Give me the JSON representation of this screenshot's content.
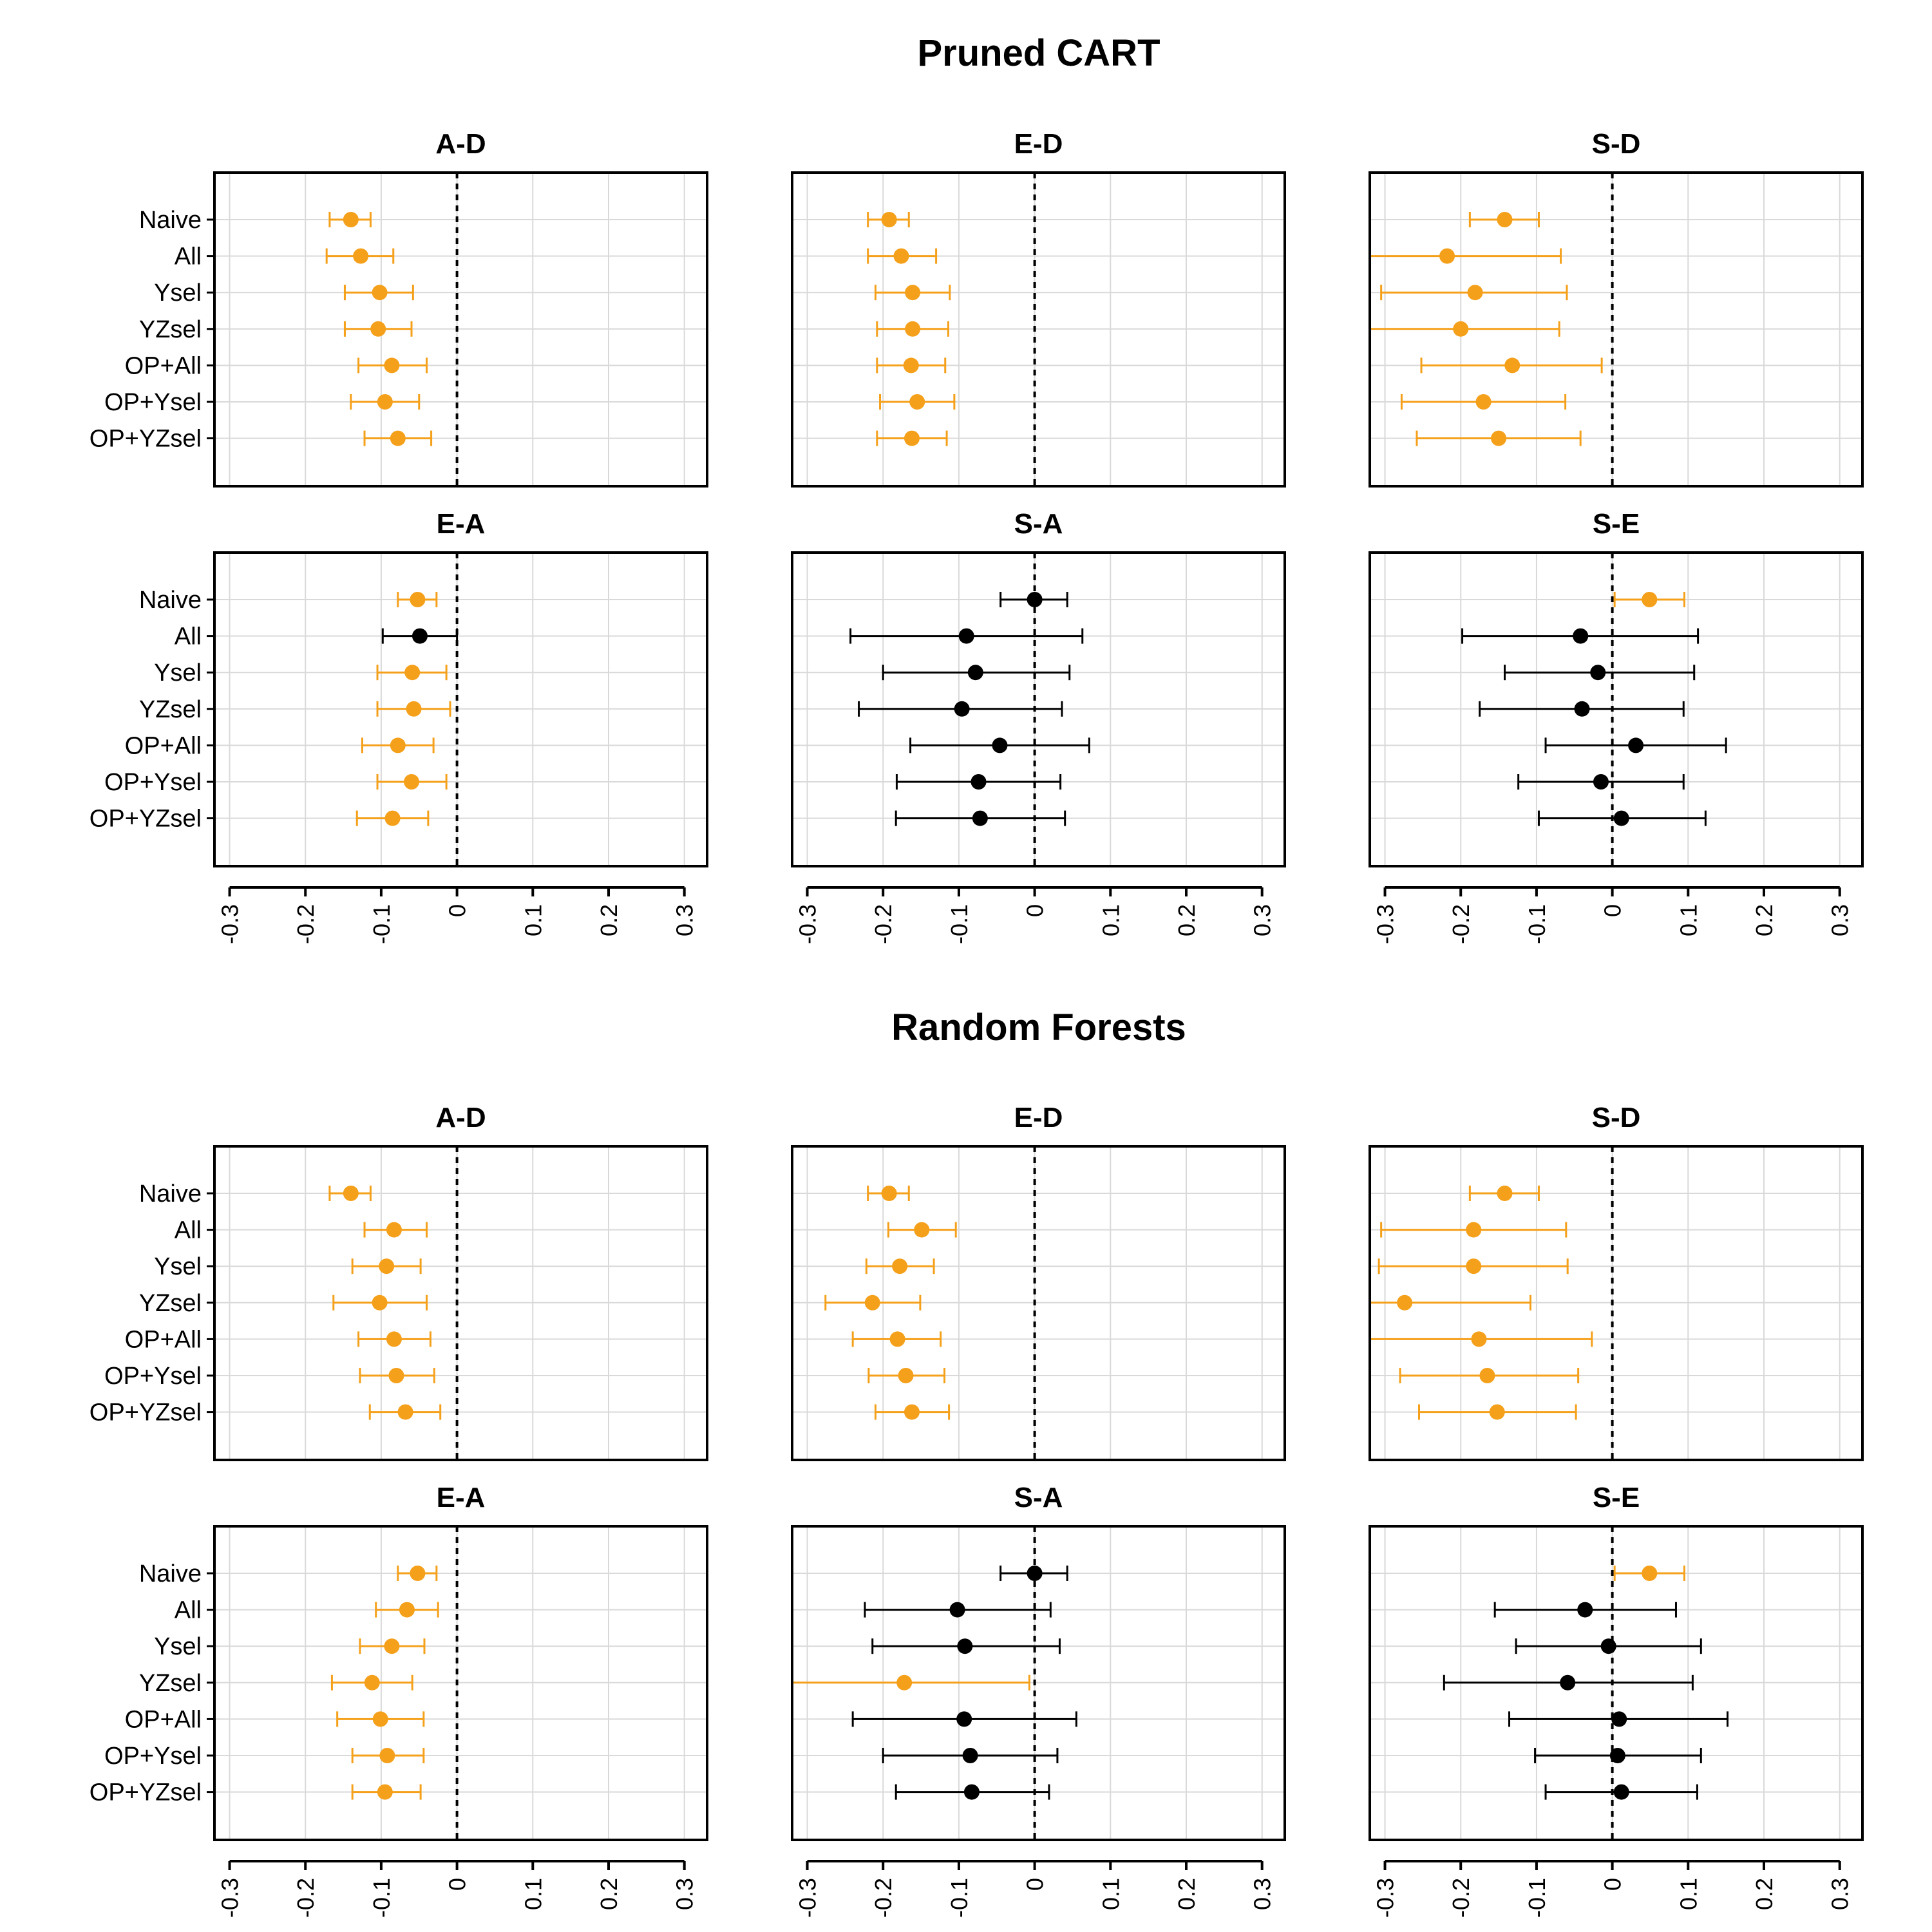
{
  "chart_data": {
    "type": "scatter",
    "subtype": "forest-plot",
    "colors": {
      "significant": "#F5A01A",
      "not_significant": "#000000"
    },
    "methods": [
      "Naive",
      "All",
      "Ysel",
      "YZsel",
      "OP+All",
      "OP+Ysel",
      "OP+YZsel"
    ],
    "xlim": [
      -0.32,
      0.33
    ],
    "x_ticks": [
      -0.3,
      -0.2,
      -0.1,
      0,
      0.1,
      0.2,
      0.3
    ],
    "x_tick_labels": [
      "-0.3",
      "-0.2",
      "-0.1",
      "0",
      "0.1",
      "0.2",
      "0.3"
    ],
    "reference_line": 0,
    "sections": [
      {
        "title": "Pruned CART",
        "panels": [
          {
            "title": "A-D",
            "est": [
              -0.14,
              -0.127,
              -0.102,
              -0.104,
              -0.086,
              -0.095,
              -0.078
            ],
            "lo": [
              -0.168,
              -0.172,
              -0.148,
              -0.148,
              -0.13,
              -0.14,
              -0.122
            ],
            "hi": [
              -0.114,
              -0.084,
              -0.058,
              -0.06,
              -0.04,
              -0.05,
              -0.034
            ],
            "sig": [
              true,
              true,
              true,
              true,
              true,
              true,
              true
            ]
          },
          {
            "title": "E-D",
            "est": [
              -0.192,
              -0.176,
              -0.161,
              -0.161,
              -0.163,
              -0.155,
              -0.162
            ],
            "lo": [
              -0.22,
              -0.22,
              -0.21,
              -0.208,
              -0.208,
              -0.204,
              -0.208
            ],
            "hi": [
              -0.166,
              -0.13,
              -0.112,
              -0.114,
              -0.118,
              -0.106,
              -0.116
            ],
            "sig": [
              true,
              true,
              true,
              true,
              true,
              true,
              true
            ]
          },
          {
            "title": "S-D",
            "est": [
              -0.142,
              -0.218,
              -0.181,
              -0.2,
              -0.132,
              -0.17,
              -0.15
            ],
            "lo": [
              -0.188,
              -0.32,
              -0.305,
              -0.32,
              -0.252,
              -0.278,
              -0.258
            ],
            "hi": [
              -0.097,
              -0.068,
              -0.06,
              -0.07,
              -0.014,
              -0.062,
              -0.042
            ],
            "sig": [
              true,
              true,
              true,
              true,
              true,
              true,
              true
            ]
          },
          {
            "title": "E-A",
            "est": [
              -0.052,
              -0.049,
              -0.059,
              -0.057,
              -0.078,
              -0.06,
              -0.085
            ],
            "lo": [
              -0.078,
              -0.098,
              -0.105,
              -0.105,
              -0.125,
              -0.105,
              -0.132
            ],
            "hi": [
              -0.027,
              0,
              -0.014,
              -0.009,
              -0.031,
              -0.014,
              -0.038
            ],
            "sig": [
              true,
              false,
              true,
              true,
              true,
              true,
              true
            ]
          },
          {
            "title": "S-A",
            "est": [
              0.0,
              -0.09,
              -0.078,
              -0.096,
              -0.046,
              -0.074,
              -0.072
            ],
            "lo": [
              -0.045,
              -0.243,
              -0.2,
              -0.232,
              -0.164,
              -0.182,
              -0.183
            ],
            "hi": [
              0.043,
              0.063,
              0.046,
              0.036,
              0.072,
              0.034,
              0.04
            ],
            "sig": [
              false,
              false,
              false,
              false,
              false,
              false,
              false
            ]
          },
          {
            "title": "S-E",
            "est": [
              0.049,
              -0.042,
              -0.019,
              -0.04,
              0.031,
              -0.015,
              0.012
            ],
            "lo": [
              0.003,
              -0.198,
              -0.142,
              -0.175,
              -0.088,
              -0.124,
              -0.097
            ],
            "hi": [
              0.095,
              0.113,
              0.108,
              0.094,
              0.15,
              0.094,
              0.123
            ],
            "sig": [
              true,
              false,
              false,
              false,
              false,
              false,
              false
            ]
          }
        ]
      },
      {
        "title": "Random Forests",
        "panels": [
          {
            "title": "A-D",
            "est": [
              -0.14,
              -0.083,
              -0.093,
              -0.102,
              -0.083,
              -0.08,
              -0.068
            ],
            "lo": [
              -0.168,
              -0.122,
              -0.138,
              -0.163,
              -0.13,
              -0.128,
              -0.115
            ],
            "hi": [
              -0.114,
              -0.04,
              -0.048,
              -0.04,
              -0.035,
              -0.03,
              -0.022
            ],
            "sig": [
              true,
              true,
              true,
              true,
              true,
              true,
              true
            ]
          },
          {
            "title": "E-D",
            "est": [
              -0.192,
              -0.149,
              -0.178,
              -0.214,
              -0.181,
              -0.17,
              -0.162
            ],
            "lo": [
              -0.22,
              -0.193,
              -0.222,
              -0.276,
              -0.24,
              -0.219,
              -0.21
            ],
            "hi": [
              -0.166,
              -0.104,
              -0.133,
              -0.151,
              -0.124,
              -0.119,
              -0.113
            ],
            "sig": [
              true,
              true,
              true,
              true,
              true,
              true,
              true
            ]
          },
          {
            "title": "S-D",
            "est": [
              -0.142,
              -0.183,
              -0.183,
              -0.274,
              -0.176,
              -0.165,
              -0.152
            ],
            "lo": [
              -0.188,
              -0.305,
              -0.308,
              -0.32,
              -0.32,
              -0.28,
              -0.255
            ],
            "hi": [
              -0.097,
              -0.061,
              -0.059,
              -0.108,
              -0.027,
              -0.045,
              -0.048
            ],
            "sig": [
              true,
              true,
              true,
              true,
              true,
              true,
              true
            ]
          },
          {
            "title": "E-A",
            "est": [
              -0.052,
              -0.066,
              -0.086,
              -0.112,
              -0.101,
              -0.092,
              -0.095
            ],
            "lo": [
              -0.078,
              -0.107,
              -0.128,
              -0.165,
              -0.158,
              -0.138,
              -0.138
            ],
            "hi": [
              -0.027,
              -0.025,
              -0.043,
              -0.059,
              -0.044,
              -0.044,
              -0.048
            ],
            "sig": [
              true,
              true,
              true,
              true,
              true,
              true,
              true
            ]
          },
          {
            "title": "S-A",
            "est": [
              0.0,
              -0.102,
              -0.092,
              -0.172,
              -0.093,
              -0.085,
              -0.083
            ],
            "lo": [
              -0.045,
              -0.224,
              -0.214,
              -0.32,
              -0.24,
              -0.2,
              -0.183
            ],
            "hi": [
              0.043,
              0.021,
              0.033,
              -0.007,
              0.055,
              0.03,
              0.019
            ],
            "sig": [
              false,
              false,
              false,
              true,
              false,
              false,
              false
            ]
          },
          {
            "title": "S-E",
            "est": [
              0.049,
              -0.036,
              -0.005,
              -0.059,
              0.009,
              0.007,
              0.012
            ],
            "lo": [
              0.003,
              -0.155,
              -0.127,
              -0.222,
              -0.136,
              -0.102,
              -0.088
            ],
            "hi": [
              0.095,
              0.084,
              0.117,
              0.106,
              0.152,
              0.117,
              0.112
            ],
            "sig": [
              true,
              false,
              false,
              false,
              false,
              false,
              false
            ]
          }
        ]
      }
    ]
  }
}
